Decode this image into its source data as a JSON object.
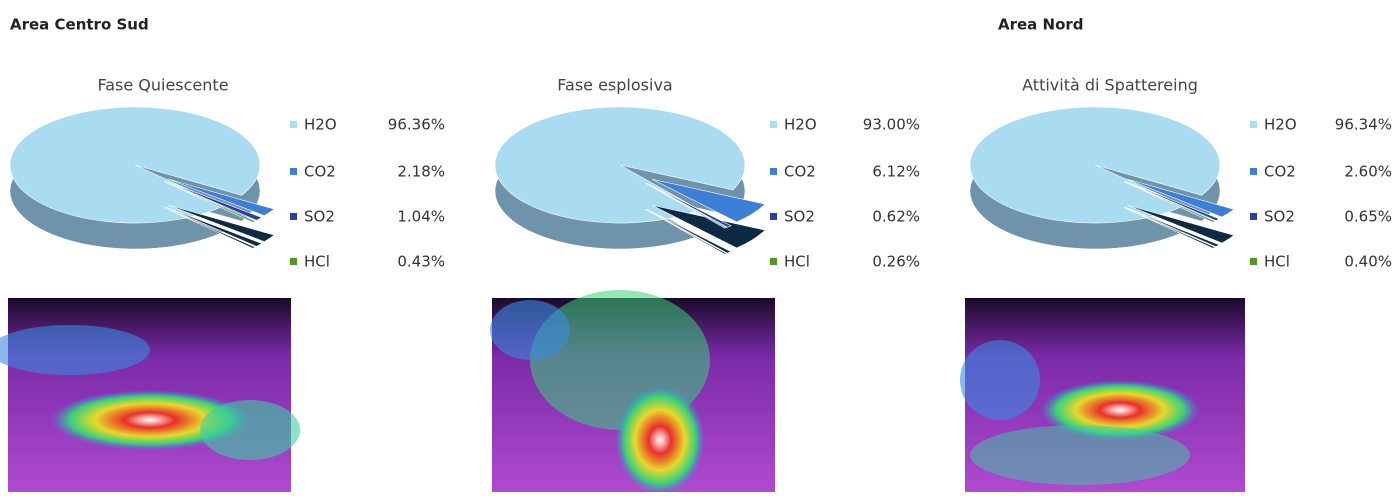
{
  "headings": [
    "Area Centro Sud",
    "Area Nord"
  ],
  "chart_data": [
    {
      "type": "pie",
      "title": "Fase Quiescente",
      "categories": [
        "H2O",
        "CO2",
        "SO2",
        "HCl"
      ],
      "values": [
        96.36,
        2.18,
        1.04,
        0.43
      ],
      "value_labels": [
        "96.36%",
        "2.18%",
        "1.04%",
        "0.43%"
      ],
      "colors": [
        "#a9dcf0",
        "#3d7fd6",
        "#2540a8",
        "#4a9a2a"
      ]
    },
    {
      "type": "pie",
      "title": "Fase esplosiva",
      "categories": [
        "H2O",
        "CO2",
        "SO2",
        "HCl"
      ],
      "values": [
        93.0,
        6.12,
        0.62,
        0.26
      ],
      "value_labels": [
        "93.00%",
        "6.12%",
        "0.62%",
        "0.26%"
      ],
      "colors": [
        "#a9dcf0",
        "#3d7fd6",
        "#2540a8",
        "#4a9a2a"
      ]
    },
    {
      "type": "pie",
      "title": "Attività di Spattereing",
      "categories": [
        "H2O",
        "CO2",
        "SO2",
        "HCl"
      ],
      "values": [
        96.34,
        2.6,
        0.65,
        0.4
      ],
      "value_labels": [
        "96.34%",
        "2.60%",
        "0.65%",
        "0.40%"
      ],
      "colors": [
        "#a9dcf0",
        "#3d7fd6",
        "#2540a8",
        "#4a9a2a"
      ]
    }
  ]
}
